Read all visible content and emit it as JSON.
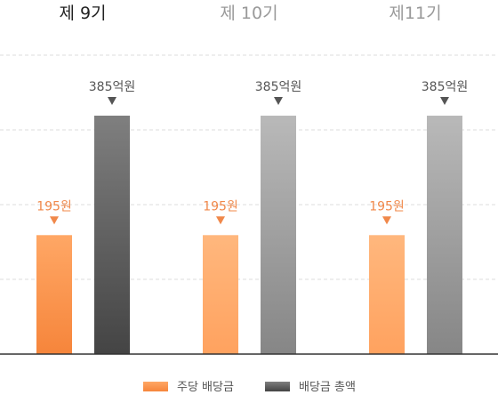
{
  "colors": {
    "current_title": "#222222",
    "past_title": "#999999",
    "dividend_label": "#f0884a",
    "total_label": "#555555",
    "marker": "#555555",
    "grid": "#dddddd",
    "axis": "#333333"
  },
  "chart_data": {
    "type": "bar",
    "categories": [
      "제 9기",
      "제 10기",
      "제11기"
    ],
    "series": [
      {
        "name": "주당 배당금",
        "values": [
          195,
          195,
          195
        ],
        "value_labels": [
          "195원",
          "195원",
          "195원"
        ]
      },
      {
        "name": "배당금 총액",
        "values": [
          385,
          385,
          385
        ],
        "value_labels": [
          "385억원",
          "385억원",
          "385억원"
        ]
      }
    ],
    "legend": {
      "placement": "bottom-center",
      "entries": [
        "주당 배당금",
        "배당금 총액"
      ]
    },
    "grid": true,
    "current_period": "제 9기"
  }
}
